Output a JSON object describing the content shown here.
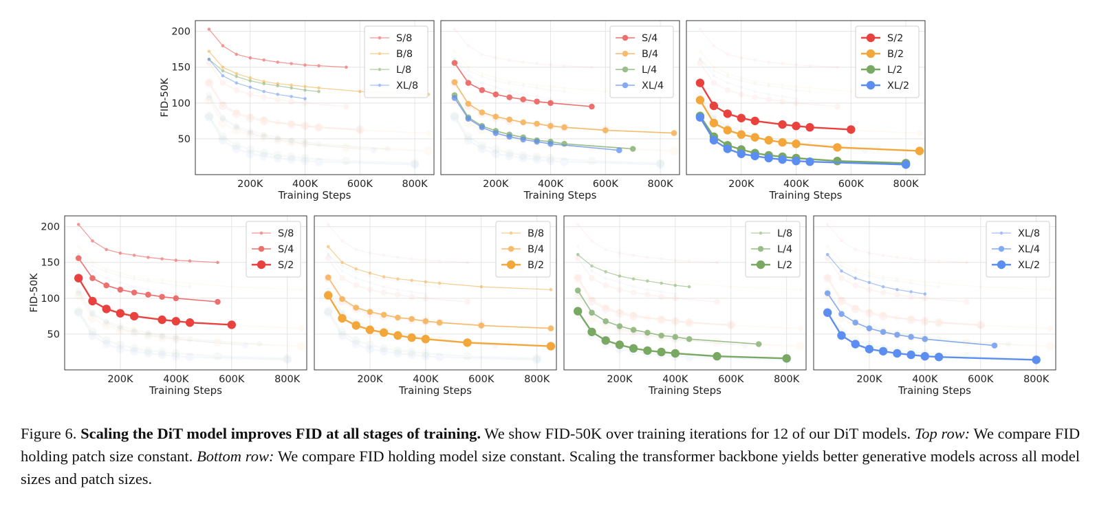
{
  "figure": {
    "caption": {
      "label": "Figure 6.",
      "bold": "Scaling the DiT model improves FID at all stages of training.",
      "text1": "We show FID-50K over training iterations for 12 of our DiT models.",
      "top_label": "Top row:",
      "text2": "We compare FID holding patch size constant.",
      "bottom_label": "Bottom row:",
      "text3": "We compare FID holding model size constant. Scaling the transformer backbone yields better generative models across all model sizes and patch sizes."
    }
  },
  "colors": {
    "S": "#e8413e",
    "B": "#f3a63a",
    "L": "#79a862",
    "XL": "#5b8ef0"
  },
  "chart_data": {
    "type": "line",
    "xlabel": "Training Steps",
    "ylabel": "FID-50K",
    "xlim": [
      0,
      870000
    ],
    "ylim": [
      0,
      215
    ],
    "xticks": [
      200000,
      400000,
      600000,
      800000
    ],
    "xtick_labels": [
      "200K",
      "400K",
      "600K",
      "800K"
    ],
    "yticks": [
      50,
      100,
      150,
      200
    ],
    "ytick_labels": [
      "50",
      "100",
      "150",
      "200"
    ],
    "grid": true,
    "legend_loc": "upper right",
    "series": [
      {
        "name": "S/8",
        "model": "S",
        "patch": 8,
        "x": [
          50000,
          100000,
          150000,
          200000,
          250000,
          300000,
          350000,
          400000,
          450000,
          550000
        ],
        "y": [
          203,
          180,
          168,
          163,
          160,
          157,
          155,
          153,
          152,
          150
        ]
      },
      {
        "name": "S/4",
        "model": "S",
        "patch": 4,
        "x": [
          50000,
          100000,
          150000,
          200000,
          250000,
          300000,
          350000,
          400000,
          550000
        ],
        "y": [
          156,
          128,
          118,
          112,
          108,
          105,
          102,
          100,
          95
        ]
      },
      {
        "name": "S/2",
        "model": "S",
        "patch": 2,
        "x": [
          50000,
          100000,
          150000,
          200000,
          250000,
          350000,
          400000,
          450000,
          600000
        ],
        "y": [
          128,
          96,
          85,
          79,
          75,
          70,
          68,
          66,
          63
        ]
      },
      {
        "name": "B/8",
        "model": "B",
        "patch": 8,
        "x": [
          50000,
          100000,
          150000,
          200000,
          250000,
          300000,
          350000,
          400000,
          450000,
          600000,
          850000
        ],
        "y": [
          172,
          150,
          141,
          135,
          130,
          127,
          125,
          123,
          121,
          116,
          112
        ]
      },
      {
        "name": "B/4",
        "model": "B",
        "patch": 4,
        "x": [
          50000,
          100000,
          150000,
          200000,
          250000,
          300000,
          350000,
          400000,
          450000,
          600000,
          850000
        ],
        "y": [
          129,
          99,
          87,
          81,
          77,
          73,
          71,
          68,
          66,
          62,
          58
        ]
      },
      {
        "name": "B/2",
        "model": "B",
        "patch": 2,
        "x": [
          50000,
          100000,
          150000,
          200000,
          250000,
          300000,
          350000,
          400000,
          550000,
          850000
        ],
        "y": [
          104,
          72,
          62,
          56,
          52,
          48,
          45,
          43,
          38,
          33
        ]
      },
      {
        "name": "L/8",
        "model": "L",
        "patch": 8,
        "x": [
          50000,
          100000,
          150000,
          200000,
          250000,
          300000,
          350000,
          400000,
          450000
        ],
        "y": [
          161,
          145,
          137,
          131,
          127,
          124,
          121,
          118,
          116
        ]
      },
      {
        "name": "L/4",
        "model": "L",
        "patch": 4,
        "x": [
          50000,
          100000,
          150000,
          200000,
          250000,
          300000,
          350000,
          400000,
          450000,
          700000
        ],
        "y": [
          111,
          80,
          68,
          61,
          56,
          52,
          48,
          46,
          43,
          36
        ]
      },
      {
        "name": "L/2",
        "model": "L",
        "patch": 2,
        "x": [
          50000,
          100000,
          150000,
          200000,
          250000,
          300000,
          350000,
          400000,
          550000,
          800000
        ],
        "y": [
          82,
          53,
          41,
          35,
          30,
          27,
          25,
          23,
          19,
          16
        ]
      },
      {
        "name": "XL/8",
        "model": "XL",
        "patch": 8,
        "x": [
          50000,
          100000,
          150000,
          200000,
          250000,
          300000,
          350000,
          400000
        ],
        "y": [
          161,
          138,
          128,
          122,
          116,
          112,
          109,
          106
        ]
      },
      {
        "name": "XL/4",
        "model": "XL",
        "patch": 4,
        "x": [
          50000,
          100000,
          150000,
          200000,
          250000,
          300000,
          350000,
          400000,
          650000
        ],
        "y": [
          107,
          78,
          66,
          58,
          53,
          49,
          46,
          43,
          34
        ]
      },
      {
        "name": "XL/2",
        "model": "XL",
        "patch": 2,
        "x": [
          50000,
          100000,
          150000,
          200000,
          250000,
          300000,
          350000,
          400000,
          450000,
          800000
        ],
        "y": [
          80,
          48,
          36,
          29,
          26,
          23,
          21,
          19,
          18,
          14
        ]
      }
    ],
    "panels": [
      {
        "row": "top",
        "highlight": [
          "S/8",
          "B/8",
          "L/8",
          "XL/8"
        ],
        "show_ylabel": true
      },
      {
        "row": "top",
        "highlight": [
          "S/4",
          "B/4",
          "L/4",
          "XL/4"
        ],
        "show_ylabel": false
      },
      {
        "row": "top",
        "highlight": [
          "S/2",
          "B/2",
          "L/2",
          "XL/2"
        ],
        "show_ylabel": false
      },
      {
        "row": "bottom",
        "highlight": [
          "S/8",
          "S/4",
          "S/2"
        ],
        "show_ylabel": true
      },
      {
        "row": "bottom",
        "highlight": [
          "B/8",
          "B/4",
          "B/2"
        ],
        "show_ylabel": false
      },
      {
        "row": "bottom",
        "highlight": [
          "L/8",
          "L/4",
          "L/2"
        ],
        "show_ylabel": false
      },
      {
        "row": "bottom",
        "highlight": [
          "XL/8",
          "XL/4",
          "XL/2"
        ],
        "show_ylabel": false
      }
    ]
  }
}
